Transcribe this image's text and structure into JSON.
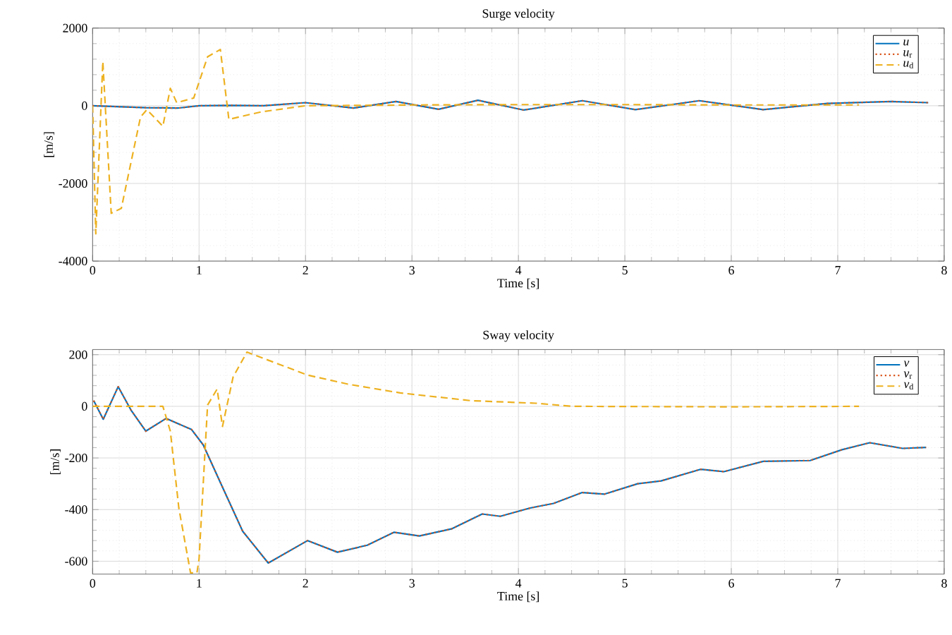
{
  "chart_data": [
    {
      "type": "line",
      "title": "Surge velocity",
      "xlabel": "Time [s]",
      "ylabel": "[m/s]",
      "xlim": [
        0,
        8
      ],
      "ylim": [
        -4000,
        2000
      ],
      "xticks": [
        0,
        1,
        2,
        3,
        4,
        5,
        6,
        7,
        8
      ],
      "yticks": [
        -4000,
        -2000,
        0,
        2000
      ],
      "grid": true,
      "legend": "top right",
      "series": [
        {
          "name": "*u*",
          "color": "#0072bd",
          "line_style": "solid",
          "x": [
            0,
            0.5,
            0.8,
            1.0,
            1.3,
            1.6,
            2.0,
            2.45,
            2.85,
            3.25,
            3.62,
            4.05,
            4.6,
            5.1,
            5.7,
            6.3,
            6.9,
            7.5,
            7.85
          ],
          "values": [
            0,
            -50,
            -60,
            0,
            10,
            0,
            80,
            -60,
            110,
            -90,
            140,
            -110,
            130,
            -100,
            130,
            -100,
            60,
            110,
            80
          ]
        },
        {
          "name": "*u*$_{r}$",
          "color": "#d95319",
          "line_style": "dotted",
          "x": [
            0,
            0.5,
            0.8,
            1.0,
            1.3,
            1.6,
            2.0,
            2.45,
            2.85,
            3.25,
            3.62,
            4.05,
            4.6,
            5.1,
            5.7,
            6.3,
            6.9,
            7.5,
            7.85
          ],
          "values": [
            0,
            -50,
            -60,
            0,
            10,
            0,
            80,
            -60,
            110,
            -90,
            140,
            -110,
            130,
            -100,
            130,
            -100,
            60,
            110,
            80
          ]
        },
        {
          "name": "*u*$_{d}$",
          "color": "#edb120",
          "line_style": "dashed",
          "x": [
            0,
            0.03,
            0.096,
            0.175,
            0.27,
            0.45,
            0.51,
            0.66,
            0.73,
            0.79,
            0.95,
            1.08,
            1.2,
            1.28,
            1.58,
            2.0,
            3.0,
            4.0,
            5.0,
            6.0,
            7.2
          ],
          "values": [
            0,
            -3300,
            1140,
            -2770,
            -2640,
            -290,
            -100,
            -530,
            450,
            80,
            200,
            1260,
            1450,
            -350,
            -160,
            0,
            20,
            30,
            30,
            20,
            20
          ]
        }
      ]
    },
    {
      "type": "line",
      "title": "Sway velocity",
      "xlabel": "Time [s]",
      "ylabel": "[m/s]",
      "xlim": [
        0,
        8
      ],
      "ylim": [
        -650,
        220
      ],
      "xticks": [
        0,
        1,
        2,
        3,
        4,
        5,
        6,
        7,
        8
      ],
      "yticks": [
        -600,
        -400,
        -200,
        0,
        200
      ],
      "grid": true,
      "legend": "top right",
      "series": [
        {
          "name": "*v*",
          "color": "#0072bd",
          "line_style": "solid",
          "x": [
            0.01,
            0.1,
            0.24,
            0.36,
            0.5,
            0.69,
            0.93,
            1.04,
            1.23,
            1.41,
            1.65,
            2.02,
            2.3,
            2.58,
            2.83,
            3.07,
            3.37,
            3.66,
            3.83,
            4.11,
            4.33,
            4.6,
            4.81,
            5.12,
            5.34,
            5.71,
            5.93,
            6.3,
            6.74,
            7.04,
            7.3,
            7.61,
            7.83
          ],
          "values": [
            22,
            -50,
            76,
            -14,
            -96,
            -47,
            -90,
            -150,
            -322,
            -484,
            -607,
            -520,
            -565,
            -538,
            -488,
            -502,
            -475,
            -417,
            -426,
            -394,
            -376,
            -334,
            -340,
            -300,
            -289,
            -244,
            -253,
            -213,
            -210,
            -168,
            -141,
            -163,
            -159
          ]
        },
        {
          "name": "*v*$_{r}$",
          "color": "#d95319",
          "line_style": "dotted",
          "x": [
            0.01,
            0.1,
            0.24,
            0.36,
            0.5,
            0.69,
            0.93,
            1.04,
            1.23,
            1.41,
            1.65,
            2.02,
            2.3,
            2.58,
            2.83,
            3.07,
            3.37,
            3.66,
            3.83,
            4.11,
            4.33,
            4.6,
            4.81,
            5.12,
            5.34,
            5.71,
            5.93,
            6.3,
            6.74,
            7.04,
            7.3,
            7.61,
            7.83
          ],
          "values": [
            22,
            -50,
            76,
            -14,
            -96,
            -47,
            -90,
            -150,
            -322,
            -484,
            -607,
            -520,
            -565,
            -538,
            -488,
            -502,
            -475,
            -417,
            -426,
            -394,
            -376,
            -334,
            -340,
            -300,
            -289,
            -244,
            -253,
            -213,
            -210,
            -168,
            -141,
            -163,
            -159
          ]
        },
        {
          "name": "*v*$_{d}$",
          "color": "#edb120",
          "line_style": "dashed",
          "x": [
            0,
            0.66,
            0.73,
            0.81,
            0.92,
            0.98,
            1.0,
            1.08,
            1.17,
            1.22,
            1.32,
            1.45,
            2.02,
            2.41,
            2.89,
            3.55,
            4.16,
            4.51,
            6.0,
            7.2
          ],
          "values": [
            0,
            0,
            -96,
            -394,
            -645,
            -645,
            -592,
            5,
            67,
            -78,
            114,
            210,
            121,
            85,
            52,
            22,
            12,
            0,
            -2,
            0
          ]
        }
      ]
    }
  ]
}
